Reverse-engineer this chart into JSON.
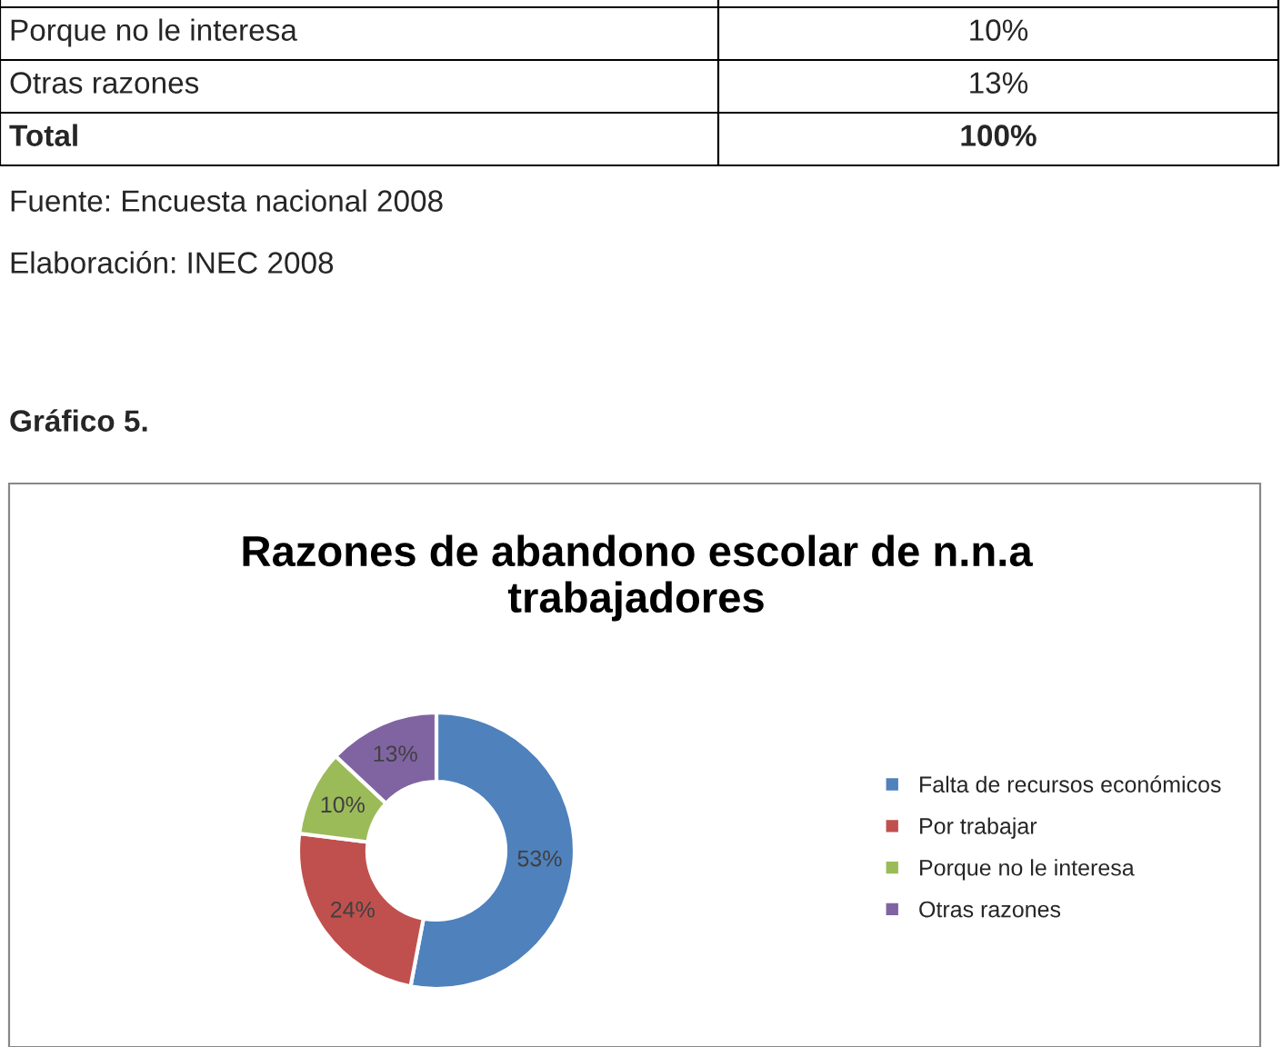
{
  "chart_data": {
    "type": "donut",
    "title": "Razones de abandono escolar de n.n.a\ntrabajadores",
    "categories": [
      "Falta de recursos económicos",
      "Por trabajar",
      "Porque no le interesa",
      "Otras razones"
    ],
    "values": [
      53,
      24,
      10,
      13
    ],
    "colors": [
      "#4f81bd",
      "#c0504d",
      "#9bbb59",
      "#8064a2"
    ],
    "value_labels": [
      "53%",
      "24%",
      "10%",
      "13%"
    ],
    "legend": "right",
    "annotations": [
      "Porque no le interesa",
      "10%",
      "Otras razones",
      "13%",
      "Total",
      "100%",
      "Fuente: Encuesta nacional 2008",
      "Elaboración: INEC 2008",
      "Gráfico 5."
    ]
  }
}
